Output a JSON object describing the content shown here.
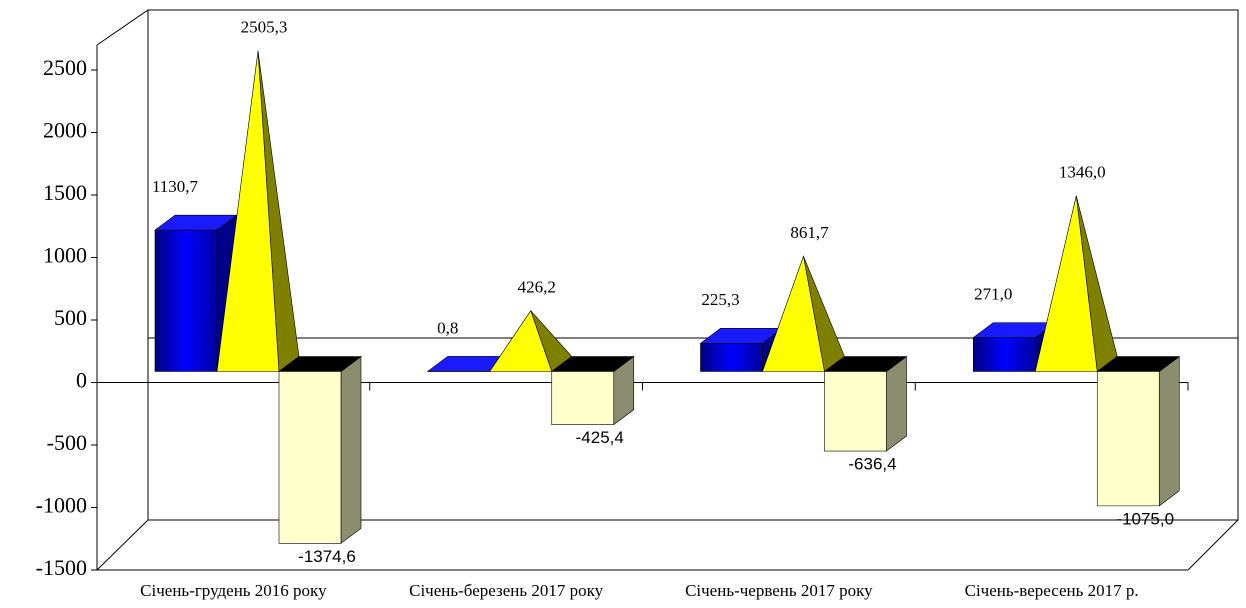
{
  "chart_data": {
    "type": "bar3d",
    "categories": [
      "Січень-грудень 2016 року",
      "Січень-березень 2017 року",
      "Січень-червень 2017 року",
      "Січень-вересень 2017 р."
    ],
    "series": [
      {
        "shape": "box",
        "color": "#0000ee",
        "values": [
          1130.7,
          0.8,
          225.3,
          271.0
        ],
        "value_labels": [
          "1130,7",
          "0,8",
          "225,3",
          "271,0"
        ]
      },
      {
        "shape": "pyramid",
        "color": "#ffff00",
        "values": [
          2505.3,
          426.2,
          861.7,
          1346.0
        ],
        "value_labels": [
          "2505,3",
          "426,2",
          "861,7",
          "1346,0"
        ]
      },
      {
        "shape": "box",
        "color": "#ffffcc",
        "values": [
          -1374.6,
          -425.4,
          -636.4,
          -1075.0
        ],
        "value_labels": [
          "-1374,6",
          "-425,4",
          "-636,4",
          "-1075,0"
        ]
      }
    ],
    "ylim": [
      -1500,
      2700
    ],
    "yticks": [
      -1500,
      -1000,
      -500,
      0,
      500,
      1000,
      1500,
      2000,
      2500
    ]
  }
}
